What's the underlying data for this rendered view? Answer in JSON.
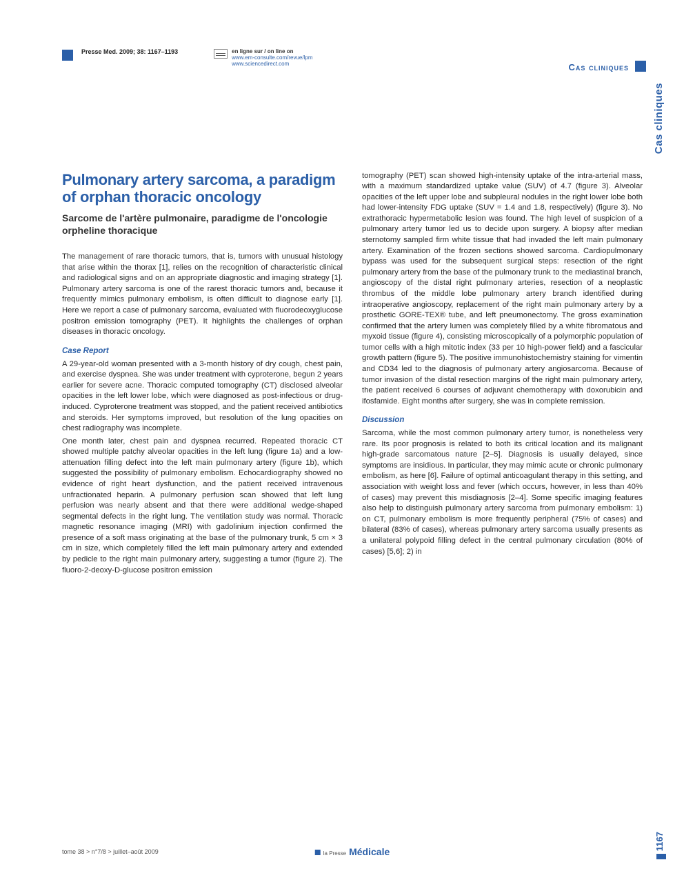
{
  "header": {
    "citation": "Presse Med. 2009; 38: 1167–1193",
    "online_label": "en ligne sur / on line on",
    "online_url1": "www.em-consulte.com/revue/lpm",
    "online_url2": "www.sciencedirect.com"
  },
  "section_label": "Cas cliniques",
  "side_tab": "Cas cliniques",
  "article": {
    "title": "Pulmonary artery sarcoma, a paradigm of orphan thoracic oncology",
    "subtitle": "Sarcome de l'artère pulmonaire, paradigme de l'oncologie orpheline thoracique",
    "intro": "The management of rare thoracic tumors, that is, tumors with unusual histology that arise within the thorax [1], relies on the recognition of characteristic clinical and radiological signs and on an appropriate diagnostic and imaging strategy [1]. Pulmonary artery sarcoma is one of the rarest thoracic tumors and, because it frequently mimics pulmonary embolism, is often difficult to diagnose early [1]. Here we report a case of pulmonary sarcoma, evaluated with fluorodeoxyglucose positron emission tomography (PET). It highlights the challenges of orphan diseases in thoracic oncology.",
    "case_head": "Case Report",
    "case_p1": "A 29-year-old woman presented with a 3-month history of dry cough, chest pain, and exercise dyspnea. She was under treatment with cyproterone, begun 2 years earlier for severe acne. Thoracic computed tomography (CT) disclosed alveolar opacities in the left lower lobe, which were diagnosed as post-infectious or drug-induced. Cyproterone treatment was stopped, and the patient received antibiotics and steroids. Her symptoms improved, but resolution of the lung opacities on chest radiography was incomplete.",
    "case_p2": "One month later, chest pain and dyspnea recurred. Repeated thoracic CT showed multiple patchy alveolar opacities in the left lung (figure 1a) and a low-attenuation filling defect into the left main pulmonary artery (figure 1b), which suggested the possibility of pulmonary embolism. Echocardiography showed no evidence of right heart dysfunction, and the patient received intravenous unfractionated heparin. A pulmonary perfusion scan showed that left lung perfusion was nearly absent and that there were additional wedge-shaped segmental defects in the right lung. The ventilation study was normal. Thoracic magnetic resonance imaging (MRI) with gadolinium injection confirmed the presence of a soft mass originating at the base of the pulmonary trunk, 5 cm × 3 cm in size, which completely filled the left main pulmonary artery and extended by pedicle to the right main pulmonary artery, suggesting a tumor (figure 2). The fluoro-2-deoxy-D-glucose positron emission",
    "col2_p1": "tomography (PET) scan showed high-intensity uptake of the intra-arterial mass, with a maximum standardized uptake value (SUV) of 4.7 (figure 3). Alveolar opacities of the left upper lobe and subpleural nodules in the right lower lobe both had lower-intensity FDG uptake (SUV = 1.4 and 1.8, respectively) (figure 3). No extrathoracic hypermetabolic lesion was found. The high level of suspicion of a pulmonary artery tumor led us to decide upon surgery. A biopsy after median sternotomy sampled firm white tissue that had invaded the left main pulmonary artery. Examination of the frozen sections showed sarcoma. Cardiopulmonary bypass was used for the subsequent surgical steps: resection of the right pulmonary artery from the base of the pulmonary trunk to the mediastinal branch, angioscopy of the distal right pulmonary arteries, resection of a neoplastic thrombus of the middle lobe pulmonary artery branch identified during intraoperative angioscopy, replacement of the right main pulmonary artery by a prosthetic GORE-TEX® tube, and left pneumonectomy. The gross examination confirmed that the artery lumen was completely filled by a white fibromatous and myxoid tissue (figure 4), consisting microscopically of a polymorphic population of tumor cells with a high mitotic index (33 per 10 high-power field) and a fascicular growth pattern (figure 5). The positive immunohistochemistry staining for vimentin and CD34 led to the diagnosis of pulmonary artery angiosarcoma. Because of tumor invasion of the distal resection margins of the right main pulmonary artery, the patient received 6 courses of adjuvant chemotherapy with doxorubicin and ifosfamide. Eight months after surgery, she was in complete remission.",
    "disc_head": "Discussion",
    "disc_p1": "Sarcoma, while the most common pulmonary artery tumor, is nonetheless very rare. Its poor prognosis is related to both its critical location and its malignant high-grade sarcomatous nature [2–5]. Diagnosis is usually delayed, since symptoms are insidious. In particular, they may mimic acute or chronic pulmonary embolism, as here [6]. Failure of optimal anticoagulant therapy in this setting, and association with weight loss and fever (which occurs, however, in less than 40% of cases) may prevent this misdiagnosis [2–4]. Some specific imaging features also help to distinguish pulmonary artery sarcoma from pulmonary embolism: 1) on CT, pulmonary embolism is more frequently peripheral (75% of cases) and bilateral (83% of cases), whereas pulmonary artery sarcoma usually presents as a unilateral polypoid filling defect in the central pulmonary circulation (80% of cases) [5,6]; 2) in"
  },
  "footer": {
    "left": "tome 38 > n°7/8 > juillet–août 2009",
    "brand_pre": "la Presse",
    "brand": "Médicale",
    "page_number": "1167"
  },
  "colors": {
    "accent": "#2b5fa8",
    "text": "#2a2a2a",
    "background": "#ffffff"
  }
}
